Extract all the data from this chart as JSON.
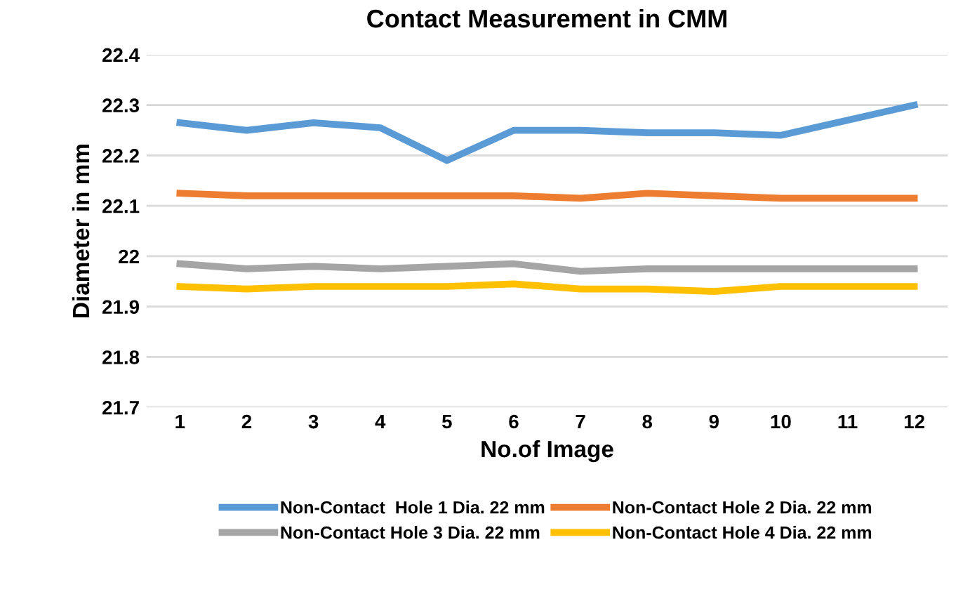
{
  "chart_data": {
    "type": "line",
    "title": "Contact Measurement in CMM",
    "xlabel": "No.of Image",
    "ylabel": "Diameter in mm",
    "categories": [
      "1",
      "2",
      "3",
      "4",
      "5",
      "6",
      "7",
      "8",
      "9",
      "10",
      "11",
      "12"
    ],
    "ylim": [
      21.7,
      22.4
    ],
    "yticks": [
      21.7,
      21.8,
      21.9,
      {
        "value": 22,
        "label": "22"
      },
      22.1,
      22.2,
      22.3,
      22.4
    ],
    "grid": "y",
    "legend": "bottom",
    "marker": "none",
    "line_style": "solid",
    "series": [
      {
        "name": "Non-Contact  Hole 1 Dia. 22 mm",
        "color": "#5b9bd5",
        "values": [
          22.265,
          22.25,
          22.265,
          22.255,
          22.19,
          22.25,
          22.25,
          22.245,
          22.245,
          22.24,
          22.27,
          22.3
        ]
      },
      {
        "name": "Non-Contact Hole 2 Dia. 22 mm",
        "color": "#ed7d31",
        "values": [
          22.125,
          22.12,
          22.12,
          22.12,
          22.12,
          22.12,
          22.115,
          22.125,
          22.12,
          22.115,
          22.115,
          22.115
        ]
      },
      {
        "name": "Non-Contact Hole 3 Dia. 22 mm",
        "color": "#a5a5a5",
        "values": [
          21.985,
          21.975,
          21.98,
          21.975,
          21.98,
          21.985,
          21.97,
          21.975,
          21.975,
          21.975,
          21.975,
          21.975
        ]
      },
      {
        "name": "Non-Contact Hole 4 Dia. 22 mm",
        "color": "#ffc000",
        "values": [
          21.94,
          21.935,
          21.94,
          21.94,
          21.94,
          21.945,
          21.935,
          21.935,
          21.93,
          21.94,
          21.94,
          21.94
        ]
      }
    ]
  }
}
